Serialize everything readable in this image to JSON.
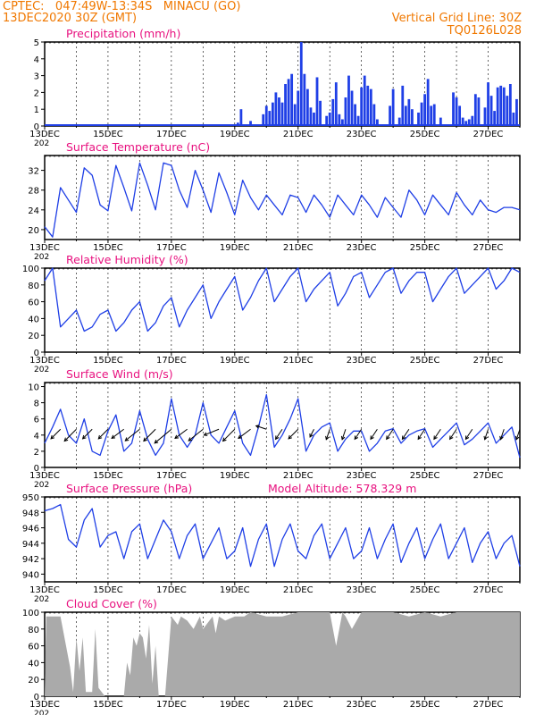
{
  "header": {
    "line1_left": "CPTEC:   047:49W-13:34S   MINACU (GO)",
    "line2_left": "13DEC2020 30Z (GMT)",
    "line1_right": "Vertical Grid Line: 30Z",
    "line2_right": "TQ0126L028",
    "text_color": "#f07800"
  },
  "colors": {
    "title": "#e8117f",
    "line": "#1f3fe6",
    "bar": "#1f3fe6",
    "cloud": "#aaaaaa",
    "frame": "#000000"
  },
  "x_axis": {
    "start_day": 13,
    "end_day": 28,
    "tick_labels": [
      "13DEC",
      "15DEC",
      "17DEC",
      "19DEC",
      "21DEC",
      "23DEC",
      "25DEC",
      "27DEC"
    ],
    "tick_days": [
      13,
      15,
      17,
      19,
      21,
      23,
      25,
      27
    ],
    "year_fragment": "202"
  },
  "chart_data": [
    {
      "id": "precip",
      "type": "bar",
      "title": "Precipitation (mm/h)",
      "ylim": [
        0,
        5
      ],
      "yticks": [
        0,
        1,
        2,
        3,
        4,
        5
      ],
      "x_days": [
        19.1,
        19.2,
        19.5,
        19.9,
        20.0,
        20.1,
        20.2,
        20.3,
        20.4,
        20.5,
        20.6,
        20.7,
        20.8,
        20.9,
        21.0,
        21.1,
        21.2,
        21.3,
        21.4,
        21.5,
        21.6,
        21.7,
        21.9,
        22.0,
        22.1,
        22.2,
        22.3,
        22.4,
        22.5,
        22.6,
        22.7,
        22.8,
        22.9,
        23.0,
        23.1,
        23.2,
        23.3,
        23.4,
        23.5,
        23.9,
        24.0,
        24.2,
        24.3,
        24.4,
        24.5,
        24.6,
        24.8,
        24.9,
        25.0,
        25.1,
        25.2,
        25.3,
        25.5,
        25.9,
        26.0,
        26.1,
        26.2,
        26.3,
        26.4,
        26.5,
        26.6,
        26.7,
        26.9,
        27.0,
        27.1,
        27.2,
        27.3,
        27.4,
        27.5,
        27.6,
        27.7,
        27.8,
        27.9
      ],
      "values": [
        0.2,
        1.0,
        0.3,
        0.7,
        1.2,
        0.9,
        1.4,
        2.0,
        1.7,
        1.4,
        2.5,
        2.8,
        3.1,
        1.3,
        2.1,
        5.0,
        3.1,
        2.2,
        1.1,
        0.8,
        2.9,
        1.5,
        0.6,
        0.8,
        1.6,
        2.6,
        0.7,
        0.4,
        1.7,
        3.0,
        2.1,
        1.3,
        0.6,
        2.3,
        3.0,
        2.4,
        2.2,
        1.3,
        0.4,
        1.2,
        2.2,
        0.5,
        2.4,
        1.2,
        1.6,
        1.0,
        0.8,
        1.4,
        1.9,
        2.8,
        1.2,
        1.3,
        0.5,
        2.0,
        1.7,
        1.2,
        0.5,
        0.3,
        0.4,
        0.6,
        1.9,
        1.7,
        1.1,
        2.6,
        1.8,
        0.9,
        2.3,
        2.4,
        2.3,
        1.8,
        2.5,
        0.8,
        1.6
      ]
    },
    {
      "id": "temp",
      "type": "line",
      "title": "Surface Temperature (nC)",
      "ylim": [
        18,
        35
      ],
      "yticks": [
        20,
        24,
        28,
        32
      ],
      "x_days": [
        13.0,
        13.25,
        13.5,
        13.75,
        14.0,
        14.25,
        14.5,
        14.75,
        15.0,
        15.25,
        15.5,
        15.75,
        16.0,
        16.25,
        16.5,
        16.75,
        17.0,
        17.25,
        17.5,
        17.75,
        18.0,
        18.25,
        18.5,
        18.75,
        19.0,
        19.25,
        19.5,
        19.75,
        20.0,
        20.25,
        20.5,
        20.75,
        21.0,
        21.25,
        21.5,
        21.75,
        22.0,
        22.25,
        22.5,
        22.75,
        23.0,
        23.25,
        23.5,
        23.75,
        24.0,
        24.25,
        24.5,
        24.75,
        25.0,
        25.25,
        25.5,
        25.75,
        26.0,
        26.25,
        26.5,
        26.75,
        27.0,
        27.25,
        27.5,
        27.75,
        28.0
      ],
      "values": [
        20.6,
        18.5,
        28.5,
        26,
        23.5,
        32.5,
        31,
        25,
        23.8,
        33,
        28.5,
        23.8,
        33.5,
        29,
        24,
        33.5,
        33,
        28,
        24.5,
        32,
        28,
        23.5,
        31.5,
        27.5,
        23,
        30,
        26.5,
        24,
        27,
        25,
        23,
        27,
        26.5,
        23.5,
        27,
        25,
        22.5,
        27,
        25,
        23,
        27,
        25,
        22.5,
        26.5,
        24.5,
        22.5,
        28,
        26,
        23,
        27,
        25,
        23,
        27.5,
        25,
        23,
        26,
        24,
        23.5,
        24.5,
        24.5,
        24
      ]
    },
    {
      "id": "rh",
      "type": "line",
      "title": "Relative Humidity (%)",
      "ylim": [
        0,
        100
      ],
      "yticks": [
        0,
        20,
        40,
        60,
        80,
        100
      ],
      "x_days": [
        13.0,
        13.25,
        13.5,
        13.75,
        14.0,
        14.25,
        14.5,
        14.75,
        15.0,
        15.25,
        15.5,
        15.75,
        16.0,
        16.25,
        16.5,
        16.75,
        17.0,
        17.25,
        17.5,
        17.75,
        18.0,
        18.25,
        18.5,
        18.75,
        19.0,
        19.25,
        19.5,
        19.75,
        20.0,
        20.25,
        20.5,
        20.75,
        21.0,
        21.25,
        21.5,
        21.75,
        22.0,
        22.25,
        22.5,
        22.75,
        23.0,
        23.25,
        23.5,
        23.75,
        24.0,
        24.25,
        24.5,
        24.75,
        25.0,
        25.25,
        25.5,
        25.75,
        26.0,
        26.25,
        26.5,
        26.75,
        27.0,
        27.25,
        27.5,
        27.75,
        28.0
      ],
      "values": [
        85,
        100,
        30,
        40,
        50,
        25,
        30,
        45,
        50,
        25,
        35,
        50,
        60,
        25,
        35,
        55,
        65,
        30,
        50,
        65,
        80,
        40,
        60,
        75,
        90,
        50,
        65,
        85,
        100,
        60,
        75,
        90,
        100,
        60,
        75,
        85,
        95,
        55,
        70,
        90,
        95,
        65,
        80,
        95,
        100,
        70,
        85,
        95,
        95,
        60,
        75,
        90,
        100,
        70,
        80,
        90,
        100,
        75,
        85,
        100,
        95
      ]
    },
    {
      "id": "wind",
      "type": "line",
      "title": "Surface Wind (m/s)",
      "ylim": [
        0,
        10.5
      ],
      "yticks": [
        0,
        2,
        4,
        6,
        8,
        10
      ],
      "x_days": [
        13.0,
        13.25,
        13.5,
        13.75,
        14.0,
        14.25,
        14.5,
        14.75,
        15.0,
        15.25,
        15.5,
        15.75,
        16.0,
        16.25,
        16.5,
        16.75,
        17.0,
        17.25,
        17.5,
        17.75,
        18.0,
        18.25,
        18.5,
        18.75,
        19.0,
        19.25,
        19.5,
        19.75,
        20.0,
        20.25,
        20.5,
        20.75,
        21.0,
        21.25,
        21.5,
        21.75,
        22.0,
        22.25,
        22.5,
        22.75,
        23.0,
        23.25,
        23.5,
        23.75,
        24.0,
        24.25,
        24.5,
        24.75,
        25.0,
        25.25,
        25.5,
        25.75,
        26.0,
        26.25,
        26.5,
        26.75,
        27.0,
        27.25,
        27.5,
        27.75,
        28.0
      ],
      "values": [
        3,
        5,
        7.2,
        4,
        3,
        6,
        2,
        1.5,
        4.5,
        6.5,
        2,
        3,
        7,
        3.5,
        1.5,
        3,
        8.5,
        4,
        2.5,
        4,
        8,
        4,
        3,
        5,
        7,
        3,
        1.5,
        5,
        9,
        2.5,
        4,
        6,
        8.5,
        2,
        4,
        5,
        5.5,
        2,
        3.5,
        4.5,
        4.5,
        2,
        3,
        4.5,
        4.8,
        3,
        4,
        4.5,
        4.8,
        2.5,
        3.5,
        4.5,
        5.5,
        2.8,
        3.5,
        4.5,
        5.5,
        3,
        4,
        5,
        1.2
      ],
      "arrow_days": [
        13.5,
        14.0,
        14.5,
        15.0,
        15.5,
        16.0,
        16.5,
        17.0,
        17.5,
        18.0,
        18.5,
        19.0,
        19.5,
        20.0,
        20.5,
        21.0,
        21.5,
        22.0,
        22.5,
        23.0,
        23.5,
        24.0,
        24.5,
        25.0,
        25.5,
        26.0,
        26.5,
        27.0,
        27.5,
        28.0
      ],
      "arrow_u": [
        -3,
        -4,
        -3,
        -3,
        -4,
        -5,
        -4,
        -6,
        -4,
        -5,
        -5,
        -4,
        -4,
        -3,
        -2,
        -3,
        -1,
        -1,
        -1,
        -2,
        -2,
        -2,
        -2,
        -2,
        -2,
        -2,
        -2,
        -1,
        -1,
        -1
      ],
      "arrow_v": [
        -3,
        -4,
        -3,
        -3,
        -3,
        -4,
        -4,
        -5,
        -3,
        -4,
        -2,
        -4,
        -3,
        1,
        -3,
        -3,
        -2,
        -3,
        -3,
        -3,
        -3,
        -3,
        -3,
        -3,
        -3,
        -3,
        -3,
        -3,
        -3,
        -3
      ]
    },
    {
      "id": "pres",
      "type": "line",
      "title": "Surface Pressure (hPa)",
      "annotation": "Model Altitude: 578.329  m",
      "ylim": [
        939,
        950
      ],
      "yticks": [
        940,
        942,
        944,
        946,
        948,
        950
      ],
      "x_days": [
        13.0,
        13.25,
        13.5,
        13.75,
        14.0,
        14.25,
        14.5,
        14.75,
        15.0,
        15.25,
        15.5,
        15.75,
        16.0,
        16.25,
        16.5,
        16.75,
        17.0,
        17.25,
        17.5,
        17.75,
        18.0,
        18.25,
        18.5,
        18.75,
        19.0,
        19.25,
        19.5,
        19.75,
        20.0,
        20.25,
        20.5,
        20.75,
        21.0,
        21.25,
        21.5,
        21.75,
        22.0,
        22.25,
        22.5,
        22.75,
        23.0,
        23.25,
        23.5,
        23.75,
        24.0,
        24.25,
        24.5,
        24.75,
        25.0,
        25.25,
        25.5,
        25.75,
        26.0,
        26.25,
        26.5,
        26.75,
        27.0,
        27.25,
        27.5,
        27.75,
        28.0
      ],
      "values": [
        948.2,
        948.5,
        949,
        944.5,
        943.5,
        947,
        948.5,
        943.5,
        945,
        945.5,
        942,
        945.5,
        946.5,
        942,
        944.5,
        947,
        945.5,
        942,
        945,
        946.5,
        942,
        944,
        946,
        942,
        943,
        946,
        941,
        944.5,
        946.5,
        941,
        944.5,
        946.5,
        943,
        942,
        945,
        946.5,
        942,
        944,
        946,
        942,
        943,
        946,
        942,
        944.5,
        946.5,
        941.5,
        944,
        946,
        942,
        944.5,
        946.5,
        942,
        944,
        946,
        941.5,
        944,
        945.5,
        942,
        944,
        945,
        941
      ]
    },
    {
      "id": "cloud",
      "type": "area",
      "title": "Cloud Cover (%)",
      "ylim": [
        0,
        100
      ],
      "yticks": [
        0,
        20,
        40,
        60,
        80,
        100
      ],
      "x_days": [
        13.0,
        13.05,
        13.5,
        13.8,
        13.9,
        14.0,
        14.1,
        14.2,
        14.3,
        14.5,
        14.6,
        14.7,
        14.9,
        15.0,
        15.2,
        15.4,
        15.5,
        15.6,
        15.7,
        15.8,
        15.9,
        16.0,
        16.1,
        16.2,
        16.3,
        16.4,
        16.5,
        16.6,
        16.8,
        17.0,
        17.2,
        17.3,
        17.5,
        17.7,
        17.9,
        18.0,
        18.3,
        18.4,
        18.5,
        18.7,
        19.0,
        19.3,
        19.5,
        20.0,
        20.5,
        21.0,
        21.5,
        22.0,
        22.2,
        22.4,
        22.5,
        22.7,
        23.0,
        23.5,
        24.0,
        24.5,
        25.0,
        25.5,
        26.0,
        26.5,
        27.0,
        27.5,
        28.0
      ],
      "values": [
        0,
        95,
        95,
        35,
        5,
        70,
        30,
        70,
        5,
        5,
        80,
        10,
        0,
        0,
        0,
        0,
        0,
        40,
        25,
        70,
        60,
        75,
        70,
        45,
        85,
        15,
        60,
        0,
        0,
        95,
        85,
        95,
        90,
        80,
        95,
        80,
        95,
        75,
        95,
        90,
        95,
        95,
        100,
        95,
        95,
        100,
        100,
        100,
        60,
        100,
        95,
        80,
        100,
        100,
        100,
        95,
        100,
        95,
        100,
        100,
        100,
        100,
        100
      ]
    }
  ]
}
